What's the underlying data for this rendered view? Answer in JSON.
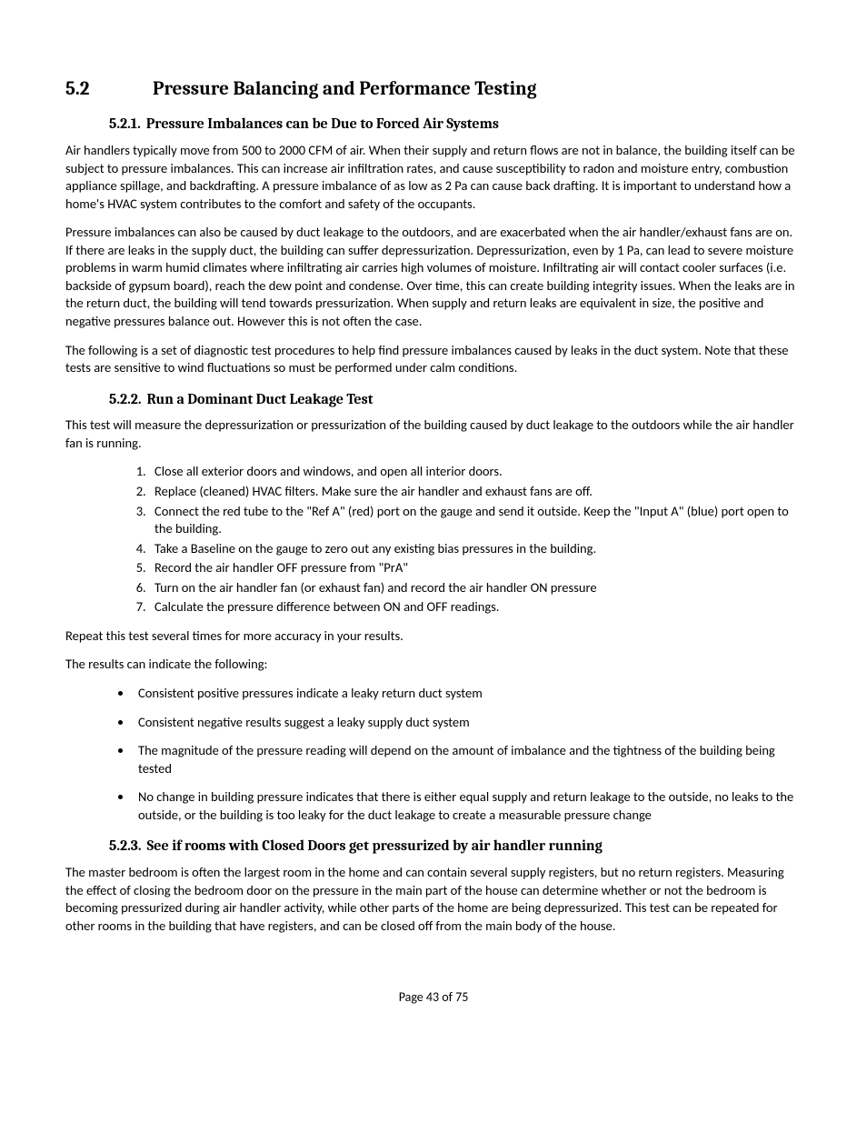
{
  "section": {
    "number": "5.2",
    "title": "Pressure Balancing and Performance Testing"
  },
  "sub1": {
    "number": "5.2.1.",
    "title": "Pressure Imbalances can be Due to Forced Air Systems",
    "p1": "Air handlers typically move from 500 to 2000 CFM of air.  When their supply and return flows are not in balance, the building itself can be subject to pressure imbalances.  This can increase air infiltration rates, and cause susceptibility to radon and moisture entry, combustion appliance spillage, and backdrafting.  A pressure imbalance of as low as 2 Pa can cause back drafting.  It is important to understand how a home's HVAC system contributes to the comfort and safety of the occupants.",
    "p2": "Pressure imbalances can also be caused by duct leakage to the outdoors, and are exacerbated when the air handler/exhaust fans are on.  If there are leaks in the supply duct, the building can suffer depressurization.  Depressurization, even by 1 Pa, can lead to severe moisture problems in warm humid climates where infiltrating air carries high volumes of moisture.  Infiltrating air will contact cooler surfaces (i.e. backside of gypsum board), reach the dew point and condense.  Over time, this can create building integrity issues.  When the leaks are in the return duct, the building will tend towards pressurization.  When supply and return leaks are equivalent in size, the positive and negative pressures balance out.  However this is not often the case.",
    "p3": "The following is a set of diagnostic test procedures to help find pressure imbalances caused by leaks in the duct system.  Note that these tests are sensitive to wind fluctuations so must be performed under calm conditions."
  },
  "sub2": {
    "number": "5.2.2.",
    "title": "Run a Dominant Duct Leakage Test",
    "intro": "This test will measure the depressurization or pressurization of the building caused by duct leakage to the outdoors while the air handler fan is running.",
    "steps": [
      "Close all exterior doors and windows, and open all interior doors.",
      "Replace (cleaned) HVAC filters.  Make sure the air handler and exhaust fans are off.",
      "Connect the red tube to the \"Ref A\" (red) port on the gauge and send it outside.  Keep the \"Input A\" (blue) port open to the building.",
      "Take a Baseline on the gauge to zero out any existing bias pressures in the building.",
      "Record the air handler OFF pressure from \"PrA\"",
      "Turn on the air handler fan (or exhaust fan) and record the air handler ON pressure",
      "Calculate the pressure difference between ON and OFF readings."
    ],
    "repeat": "Repeat this test several times for more accuracy in your results.",
    "resultsIntro": "The results can indicate the following:",
    "bullets": [
      "Consistent positive pressures indicate a leaky return duct system",
      "Consistent negative results suggest a leaky supply duct system",
      "The magnitude of the pressure reading will depend on the amount of imbalance and the tightness of the building being tested",
      "No change in building pressure indicates that there is either equal supply and return leakage to the outside, no leaks to the outside, or the building is too leaky for the duct leakage to create a measurable pressure change"
    ]
  },
  "sub3": {
    "number": "5.2.3.",
    "title": "See if rooms with Closed Doors get pressurized by air handler running",
    "p1": "The master bedroom is often the largest room in the home and can contain several supply registers, but no return registers.  Measuring the effect of closing the bedroom door on the pressure in the main part of the house can determine whether or not the bedroom is becoming pressurized during air handler activity, while other parts of the home are being depressurized.  This test can be repeated for other rooms in the building that have registers, and can be closed off from the main body of the house."
  },
  "footer": "Page 43 of 75"
}
